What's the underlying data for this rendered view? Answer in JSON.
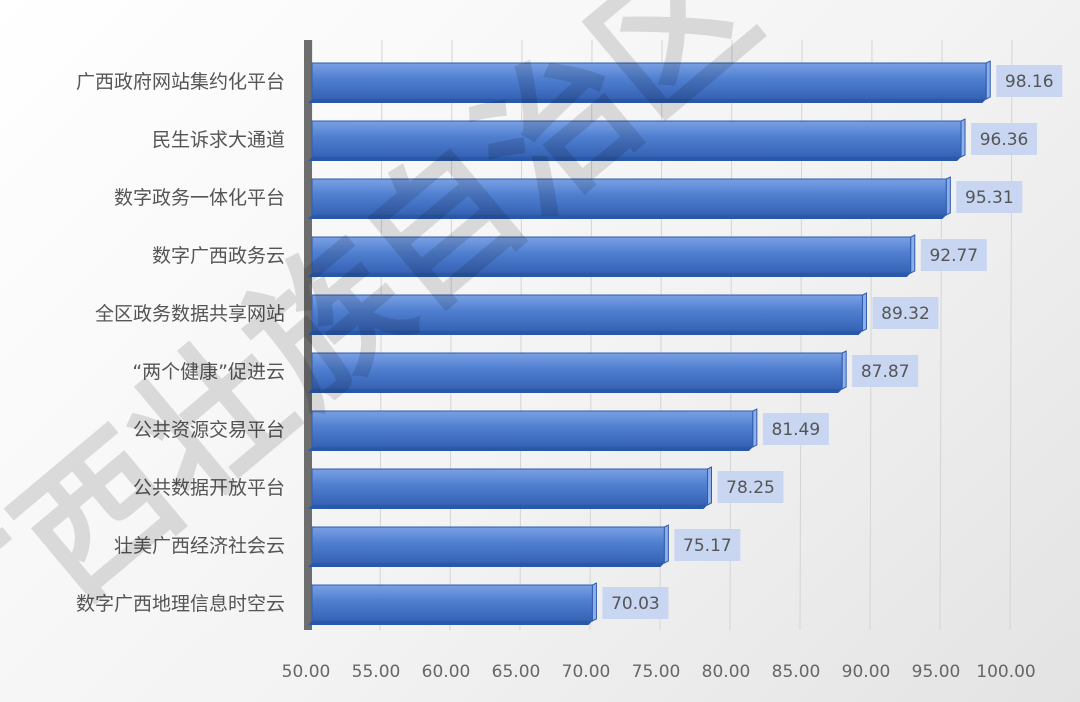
{
  "chart_data": {
    "type": "bar",
    "orientation": "horizontal",
    "categories": [
      "广西政府网站集约化平台",
      "民生诉求大通道",
      "数字政务一体化平台",
      "数字广西政务云",
      "全区政务数据共享网站",
      "“两个健康”促进云",
      "公共资源交易平台",
      "公共数据开放平台",
      "壮美广西经济社会云",
      "数字广西地理信息时空云"
    ],
    "values": [
      98.16,
      96.36,
      95.31,
      92.77,
      89.32,
      87.87,
      81.49,
      78.25,
      75.17,
      70.03
    ],
    "value_labels": [
      "98.16",
      "96.36",
      "95.31",
      "92.77",
      "89.32",
      "87.87",
      "81.49",
      "78.25",
      "75.17",
      "70.03"
    ],
    "xlim": [
      50,
      100
    ],
    "xticks": [
      "50.00",
      "55.00",
      "60.00",
      "65.00",
      "70.00",
      "75.00",
      "80.00",
      "85.00",
      "90.00",
      "95.00",
      "100.00"
    ],
    "grid": true,
    "bar_color": "#4f7fd0",
    "bar_dark": "#2a58a8",
    "bar_light": "#8db0ea",
    "label_bg": "#c8d6f2"
  },
  "watermark": {
    "text": "广西壮族自治区"
  }
}
